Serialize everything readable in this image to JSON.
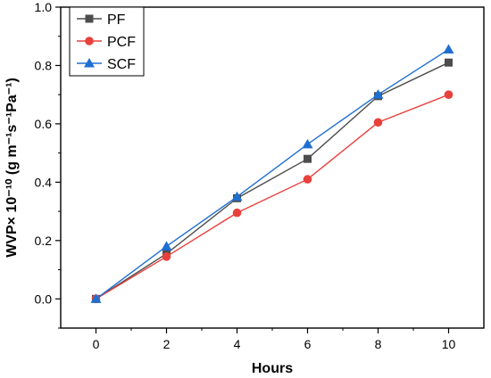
{
  "chart_data": {
    "type": "line",
    "xlabel": "Hours",
    "ylabel": "WVP× 10⁻¹⁰ (g m⁻¹s⁻¹Pa⁻¹)",
    "x": [
      0,
      2,
      4,
      6,
      8,
      10
    ],
    "xlim": [
      -1,
      11
    ],
    "ylim": [
      -0.1,
      1.0
    ],
    "xticks": [
      "0",
      "2",
      "4",
      "6",
      "8",
      "10"
    ],
    "yticks": [
      "0.0",
      "0.2",
      "0.4",
      "0.6",
      "0.8",
      "1.0"
    ],
    "grid": false,
    "legend_position": "top-left",
    "series": [
      {
        "name": "PF",
        "color": "#4d4d4d",
        "marker": "square",
        "values": [
          0.0,
          0.155,
          0.345,
          0.48,
          0.695,
          0.81
        ]
      },
      {
        "name": "PCF",
        "color": "#e8413c",
        "marker": "circle",
        "values": [
          0.0,
          0.145,
          0.295,
          0.41,
          0.605,
          0.7
        ]
      },
      {
        "name": "SCF",
        "color": "#1f6fd1",
        "marker": "triangle",
        "values": [
          0.0,
          0.18,
          0.35,
          0.53,
          0.7,
          0.855
        ]
      }
    ]
  }
}
